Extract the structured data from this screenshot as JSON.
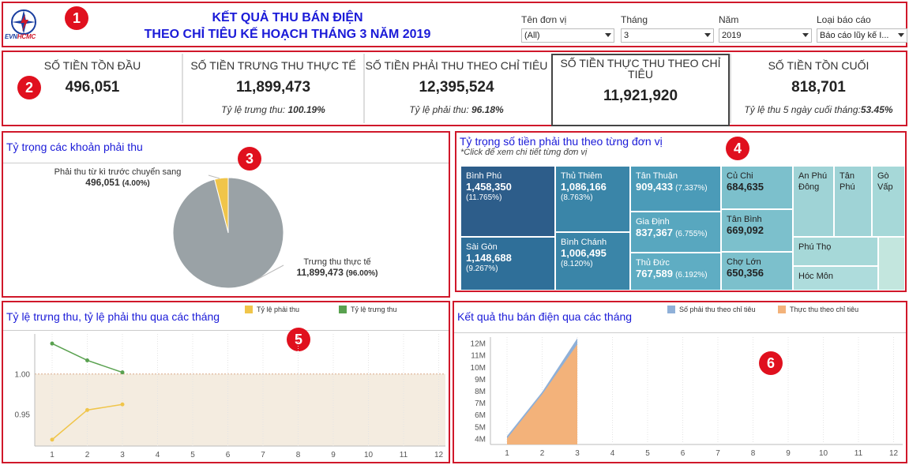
{
  "header": {
    "logo_text_evn": "EVN",
    "logo_text_hcmc": "HCMC",
    "title_line1": "KẾT QUẢ THU BÁN ĐIỆN",
    "title_line2": "THEO CHỈ TIÊU KẾ HOẠCH THÁNG 3 NĂM 2019",
    "filters": [
      {
        "label": "Tên đơn vị",
        "value": "(All)"
      },
      {
        "label": "Tháng",
        "value": "3"
      },
      {
        "label": "Năm",
        "value": "2019"
      },
      {
        "label": "Loại báo cáo",
        "value": "Báo cáo lũy kế I..."
      }
    ]
  },
  "badges": [
    "1",
    "2",
    "3",
    "4",
    "5",
    "6"
  ],
  "kpis": [
    {
      "label": "SỐ TIỀN TỒN ĐẦU",
      "value": "496,051",
      "sub_label": "",
      "sub_value": ""
    },
    {
      "label": "SỐ TIỀN TRƯNG THU THỰC TẾ",
      "value": "11,899,473",
      "sub_label": "Tỷ lệ trưng thu: ",
      "sub_value": "100.19%"
    },
    {
      "label": "SỐ TIỀN PHẢI THU THEO CHỈ TIÊU",
      "value": "12,395,524",
      "sub_label": "Tỷ lệ phải thu: ",
      "sub_value": "96.18%"
    },
    {
      "label": "SỐ TIỀN THỰC THU THEO CHỈ TIÊU",
      "value": "11,921,920",
      "sub_label": "",
      "sub_value": ""
    },
    {
      "label": "SỐ TIỀN TỒN CUỐI",
      "value": "818,701",
      "sub_label": "Tỷ lệ thu 5 ngày cuối tháng:",
      "sub_value": "53.45%"
    }
  ],
  "pie_panel": {
    "title": "Tỷ trọng các khoản phải thu",
    "label_a_name": "Phải thu từ kì trước chuyển sang",
    "label_a_value": "496,051",
    "label_a_pct": "(4.00%)",
    "label_b_name": "Trưng thu thực tế",
    "label_b_value": "11,899,473",
    "label_b_pct": "(96.00%)",
    "colors": {
      "a": "#f0c54a",
      "b": "#9aa2a6"
    }
  },
  "chart_data": [
    {
      "type": "pie",
      "title": "Tỷ trọng các khoản phải thu",
      "categories": [
        "Phải thu từ kì trước chuyển sang",
        "Trưng thu thực tế"
      ],
      "values": [
        496051,
        11899473
      ],
      "percents": [
        4.0,
        96.0
      ]
    },
    {
      "type": "line",
      "title": "Tỷ lệ trưng thu, tỷ lệ phải thu qua các tháng",
      "x": [
        1,
        2,
        3
      ],
      "x_ticks": [
        1,
        2,
        3,
        4,
        5,
        6,
        7,
        8,
        9,
        10,
        11,
        12
      ],
      "series": [
        {
          "name": "Tỷ lệ phải thu",
          "values": [
            0.918,
            0.955,
            0.962
          ],
          "color": "#f0c54a"
        },
        {
          "name": "Tỷ lệ trưng thu",
          "values": [
            1.038,
            1.017,
            1.002
          ],
          "color": "#59a14f"
        }
      ],
      "ylim": [
        0.91,
        1.05
      ],
      "y_ticks": [
        "1.00",
        "0.95"
      ],
      "reference_line": 1.0
    },
    {
      "type": "area",
      "title": "Kết quả thu bán điện qua các tháng",
      "x": [
        1,
        2,
        3
      ],
      "x_ticks": [
        1,
        2,
        3,
        4,
        5,
        6,
        7,
        8,
        9,
        10,
        11,
        12
      ],
      "series": [
        {
          "name": "Số phải thu theo chỉ tiêu",
          "values": [
            4200000,
            7900000,
            12400000
          ],
          "color": "#8fb0d8"
        },
        {
          "name": "Thực thu theo chỉ tiêu",
          "values": [
            4000000,
            7700000,
            11900000
          ],
          "color": "#f3b27a"
        }
      ],
      "ylim": [
        3500000,
        12500000
      ],
      "y_ticks": [
        "12M",
        "11M",
        "10M",
        "9M",
        "8M",
        "7M",
        "6M",
        "5M",
        "4M"
      ]
    }
  ],
  "treemap_panel": {
    "title": "Tỷ trọng số tiền phải thu theo từng đơn vị",
    "subtitle": "*Click để xem chi tiết từng đơn vị",
    "cells": [
      {
        "name": "Bình Phú",
        "value": "1,458,350",
        "pct": "(11.765%)",
        "color": "#2d5d8a"
      },
      {
        "name": "Sài Gòn",
        "value": "1,148,688",
        "pct": "(9.267%)",
        "color": "#2f6f99"
      },
      {
        "name": "Thủ Thiêm",
        "value": "1,086,166",
        "pct": "(8.763%)",
        "color": "#3a85a8"
      },
      {
        "name": "Bình Chánh",
        "value": "1,006,495",
        "pct": "(8.120%)",
        "color": "#3a85a8"
      },
      {
        "name": "Tân Thuận",
        "value": "909,433",
        "pct": "(7.337%)",
        "color": "#4b9bb8"
      },
      {
        "name": "Gia Định",
        "value": "837,367",
        "pct": "(6.755%)",
        "color": "#58a7bf"
      },
      {
        "name": "Thủ Đức",
        "value": "767,589",
        "pct": "(6.192%)",
        "color": "#5fadc3"
      },
      {
        "name": "Củ Chi",
        "value": "684,635",
        "pct": "",
        "color": "#7cc0cc"
      },
      {
        "name": "Tân Bình",
        "value": "669,092",
        "pct": "",
        "color": "#7cc0cc"
      },
      {
        "name": "Chợ Lớn",
        "value": "650,356",
        "pct": "",
        "color": "#7cc0cc"
      },
      {
        "name": "An Phú Đông",
        "value": "",
        "pct": "",
        "color": "#9fd3d6"
      },
      {
        "name": "Tân Phú",
        "value": "",
        "pct": "",
        "color": "#9fd3d6"
      },
      {
        "name": "Gò Vấp",
        "value": "",
        "pct": "",
        "color": "#a6d8d8"
      },
      {
        "name": "Phú Thọ",
        "value": "",
        "pct": "",
        "color": "#a6d8d8"
      },
      {
        "name": "Hóc Môn",
        "value": "",
        "pct": "",
        "color": "#aedcdc"
      },
      {
        "name": "",
        "value": "",
        "pct": "",
        "color": "#c3e6de"
      }
    ]
  },
  "line_panel": {
    "title": "Tỷ lệ trưng thu, tỷ lệ phải thu qua các tháng",
    "legend": [
      "Tỷ lệ phải thu",
      "Tỷ lệ trưng thu"
    ]
  },
  "area_panel": {
    "title": "Kết quả thu bán điện qua các tháng",
    "legend": [
      "Số phải thu theo chỉ tiêu",
      "Thực thu theo chỉ tiêu"
    ]
  }
}
